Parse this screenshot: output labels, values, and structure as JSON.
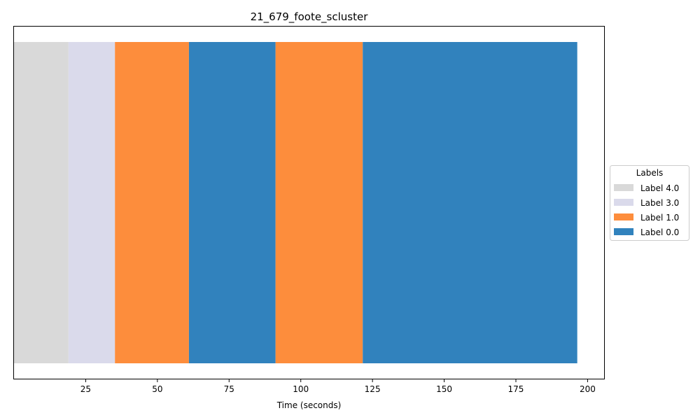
{
  "chart_data": {
    "type": "bar",
    "orientation": "horizontal-timeline",
    "title": "21_679_foote_scluster",
    "xlabel": "Time (seconds)",
    "ylabel": "",
    "xlim": [
      0,
      206
    ],
    "xticks": [
      25,
      50,
      75,
      100,
      125,
      150,
      175,
      200
    ],
    "grid": false,
    "legend": {
      "title": "Labels",
      "placement": "center-right-outside",
      "entries": [
        {
          "name": "Label 4.0",
          "color": "#d9d9d9"
        },
        {
          "name": "Label 3.0",
          "color": "#dadaeb"
        },
        {
          "name": "Label 1.0",
          "color": "#fd8d3c"
        },
        {
          "name": "Label 0.0",
          "color": "#3182bd"
        }
      ]
    },
    "segments": [
      {
        "label": "Label 4.0",
        "start": 0,
        "end": 19
      },
      {
        "label": "Label 3.0",
        "start": 19,
        "end": 35.2
      },
      {
        "label": "Label 1.0",
        "start": 35.2,
        "end": 61
      },
      {
        "label": "Label 0.0",
        "start": 61,
        "end": 91.2
      },
      {
        "label": "Label 1.0",
        "start": 91.2,
        "end": 121.6
      },
      {
        "label": "Label 0.0",
        "start": 121.6,
        "end": 196.4
      }
    ]
  }
}
